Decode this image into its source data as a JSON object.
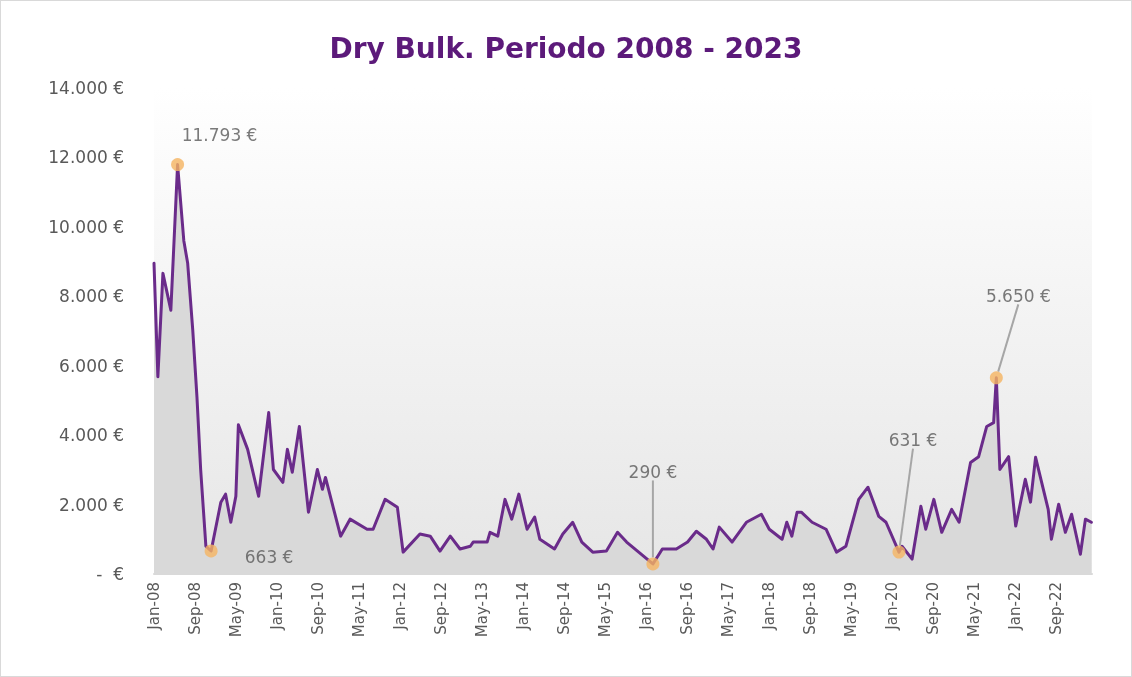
{
  "chart_data": {
    "type": "area",
    "title": "Dry Bulk. Periodo 2008 - 2023",
    "xlim": [
      "2008-01-01",
      "2023-04-01"
    ],
    "xticks": [
      {
        "value": "2008-01-01",
        "label": "Jan-08"
      },
      {
        "value": "2008-09-01",
        "label": "Sep-08"
      },
      {
        "value": "2009-05-01",
        "label": "May-09"
      },
      {
        "value": "2010-01-01",
        "label": "Jan-10"
      },
      {
        "value": "2010-09-01",
        "label": "Sep-10"
      },
      {
        "value": "2011-05-01",
        "label": "May-11"
      },
      {
        "value": "2012-01-01",
        "label": "Jan-12"
      },
      {
        "value": "2012-09-01",
        "label": "Sep-12"
      },
      {
        "value": "2013-05-01",
        "label": "May-13"
      },
      {
        "value": "2014-01-01",
        "label": "Jan-14"
      },
      {
        "value": "2014-09-01",
        "label": "Sep-14"
      },
      {
        "value": "2015-05-01",
        "label": "May-15"
      },
      {
        "value": "2016-01-01",
        "label": "Jan-16"
      },
      {
        "value": "2016-09-01",
        "label": "Sep-16"
      },
      {
        "value": "2017-05-01",
        "label": "May-17"
      },
      {
        "value": "2018-01-01",
        "label": "Jan-18"
      },
      {
        "value": "2018-09-01",
        "label": "Sep-18"
      },
      {
        "value": "2019-05-01",
        "label": "May-19"
      },
      {
        "value": "2020-01-01",
        "label": "Jan-20"
      },
      {
        "value": "2020-09-01",
        "label": "Sep-20"
      },
      {
        "value": "2021-05-01",
        "label": "May-21"
      },
      {
        "value": "2022-01-01",
        "label": "Jan-22"
      },
      {
        "value": "2022-09-01",
        "label": "Sep-22"
      }
    ],
    "ylim": [
      0,
      14000
    ],
    "yticks": [
      {
        "value": 0,
        "label": "-  €"
      },
      {
        "value": 2000,
        "label": "2.000 €"
      },
      {
        "value": 4000,
        "label": "4.000 €"
      },
      {
        "value": 6000,
        "label": "6.000 €"
      },
      {
        "value": 8000,
        "label": "8.000 €"
      },
      {
        "value": 10000,
        "label": "10.000 €"
      },
      {
        "value": 12000,
        "label": "12.000 €"
      },
      {
        "value": 14000,
        "label": "14.000 €"
      }
    ],
    "grid": false,
    "series": [
      {
        "color": "#6a2b8a",
        "marker": "none",
        "x": [
          "2008-01-01",
          "2008-01-24",
          "2008-02-23",
          "2008-04-10",
          "2008-05-20",
          "2008-06-26",
          "2008-07-19",
          "2008-08-18",
          "2008-09-12",
          "2008-10-04",
          "2008-11-04",
          "2008-12-05",
          "2009-02-01",
          "2009-03-01",
          "2009-04-01",
          "2009-05-01",
          "2009-05-16",
          "2009-07-10",
          "2009-09-13",
          "2009-11-12",
          "2009-12-10",
          "2010-02-04",
          "2010-03-03",
          "2010-04-01",
          "2010-05-13",
          "2010-07-06",
          "2010-08-28",
          "2010-09-27",
          "2010-10-15",
          "2011-01-13",
          "2011-03-10",
          "2011-06-19",
          "2011-07-25",
          "2011-10-04",
          "2011-12-16",
          "2012-01-19",
          "2012-04-28",
          "2012-06-28",
          "2012-08-25",
          "2012-10-25",
          "2012-12-22",
          "2013-02-21",
          "2013-03-10",
          "2013-06-01",
          "2013-06-18",
          "2013-08-03",
          "2013-09-15",
          "2013-10-25",
          "2013-12-06",
          "2014-01-24",
          "2014-03-10",
          "2014-04-10",
          "2014-07-06",
          "2014-08-24",
          "2014-10-22",
          "2014-12-15",
          "2015-02-18",
          "2015-05-10",
          "2015-07-15",
          "2015-09-07",
          "2016-02-10",
          "2016-04-06",
          "2016-06-28",
          "2016-09-03",
          "2016-10-25",
          "2016-12-24",
          "2017-02-01",
          "2017-03-10",
          "2017-05-25",
          "2017-08-18",
          "2017-11-15",
          "2018-01-01",
          "2018-03-18",
          "2018-04-15",
          "2018-05-15",
          "2018-06-15",
          "2018-07-10",
          "2018-09-12",
          "2018-12-04",
          "2019-02-04",
          "2019-04-01",
          "2019-06-16",
          "2019-08-10",
          "2019-10-13",
          "2019-11-25",
          "2020-02-10",
          "2020-02-28",
          "2020-04-28",
          "2020-06-19",
          "2020-07-18",
          "2020-09-04",
          "2020-10-21",
          "2020-12-19",
          "2021-02-01",
          "2021-04-10",
          "2021-05-28",
          "2021-07-15",
          "2021-08-25",
          "2021-09-10",
          "2021-10-01",
          "2021-11-22",
          "2022-01-03",
          "2022-03-01",
          "2022-04-01",
          "2022-05-01",
          "2022-07-15",
          "2022-08-03",
          "2022-09-15",
          "2022-10-25",
          "2022-12-01",
          "2023-01-22",
          "2023-02-21",
          "2023-03-28"
        ],
        "values": [
          8950,
          5680,
          8660,
          7600,
          11793,
          9600,
          8950,
          7030,
          5100,
          3010,
          800,
          663,
          2070,
          2300,
          1490,
          2240,
          4300,
          3590,
          2240,
          4650,
          3010,
          2640,
          3590,
          2930,
          4250,
          1780,
          3010,
          2440,
          2780,
          1090,
          1580,
          1290,
          1290,
          2150,
          1920,
          630,
          1150,
          1090,
          660,
          1090,
          720,
          800,
          920,
          920,
          1200,
          1090,
          2150,
          1580,
          2300,
          1290,
          1640,
          1000,
          720,
          1150,
          1490,
          920,
          630,
          660,
          1200,
          920,
          290,
          720,
          720,
          920,
          1230,
          1000,
          720,
          1350,
          920,
          1490,
          1720,
          1290,
          1000,
          1490,
          1090,
          1780,
          1780,
          1490,
          1290,
          630,
          800,
          2150,
          2500,
          1660,
          1490,
          631,
          800,
          430,
          1950,
          1290,
          2150,
          1200,
          1860,
          1490,
          3210,
          3380,
          4250,
          4360,
          5650,
          3010,
          3380,
          1380,
          2730,
          2070,
          3360,
          1860,
          1000,
          2010,
          1200,
          1720,
          570,
          1580,
          1490
        ]
      },
      {
        "type": "scatter",
        "color": "#f5b461",
        "marker": "circle",
        "x": [
          "2008-05-20",
          "2008-12-05",
          "2016-02-10",
          "2020-02-10",
          "2021-09-10"
        ],
        "values": [
          11793,
          663,
          290,
          631,
          5650
        ]
      }
    ],
    "annotations": [
      {
        "text": "11.793 €",
        "x": "2008-05-20",
        "y": 11793
      },
      {
        "text": "663 €",
        "x": "2008-12-05",
        "y": 663
      },
      {
        "text": "290 €",
        "x": "2016-02-10",
        "y": 290
      },
      {
        "text": "631 €",
        "x": "2020-02-10",
        "y": 631
      },
      {
        "text": "5.650 €",
        "x": "2021-09-10",
        "y": 5650
      }
    ]
  }
}
